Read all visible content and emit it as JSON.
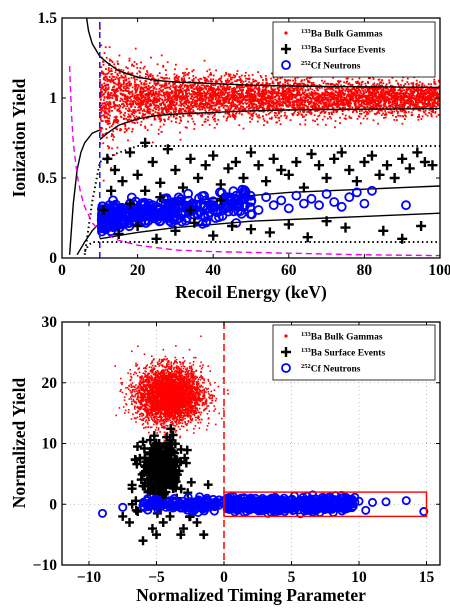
{
  "colors": {
    "gammas": "#ff0000",
    "surface": "#000000",
    "neutrons": "#0000ff",
    "magenta": "#ee00ee",
    "bands": "#000000",
    "cut": "#ff0000"
  },
  "legend_entries": [
    {
      "series": "gammas",
      "marker": "dot",
      "sup": "133",
      "text": "Ba Bulk Gammas"
    },
    {
      "series": "surface",
      "marker": "plus",
      "sup": "133",
      "text": "Ba Surface Events"
    },
    {
      "series": "neutrons",
      "marker": "circle",
      "sup": "252",
      "text": "Cf Neutrons"
    }
  ],
  "chart_data": [
    {
      "type": "scatter",
      "xlabel": "Recoil Energy (keV)",
      "ylabel": "Ionization Yield",
      "xlim": [
        0,
        100
      ],
      "ylim": [
        0,
        1.5
      ],
      "xticks": [
        0,
        20,
        40,
        60,
        80,
        100
      ],
      "xtick_labels": [
        "0",
        "20",
        "40",
        "60",
        "80",
        "100"
      ],
      "yticks": [
        0,
        0.5,
        1,
        1.5
      ],
      "ytick_labels": [
        "0",
        "0.5",
        "1",
        "1.5"
      ],
      "grid": false,
      "legend_position": "top-right",
      "series": [
        {
          "key": "gammas",
          "marker": "dot",
          "description_points": {
            "band_center": 1.0,
            "band_half_width_at_100keV": 0.07,
            "x_range": [
              10,
              100
            ],
            "density": "very high"
          }
        },
        {
          "key": "surface",
          "marker": "plus",
          "sample_points": [
            [
              12,
              0.62
            ],
            [
              14,
              0.55
            ],
            [
              16,
              0.48
            ],
            [
              18,
              0.66
            ],
            [
              20,
              0.52
            ],
            [
              22,
              0.42
            ],
            [
              24,
              0.6
            ],
            [
              26,
              0.47
            ],
            [
              28,
              0.68
            ],
            [
              30,
              0.55
            ],
            [
              32,
              0.44
            ],
            [
              34,
              0.62
            ],
            [
              36,
              0.5
            ],
            [
              38,
              0.58
            ],
            [
              40,
              0.64
            ],
            [
              42,
              0.46
            ],
            [
              44,
              0.56
            ],
            [
              46,
              0.6
            ],
            [
              48,
              0.5
            ],
            [
              50,
              0.66
            ],
            [
              52,
              0.58
            ],
            [
              54,
              0.48
            ],
            [
              56,
              0.62
            ],
            [
              58,
              0.55
            ],
            [
              60,
              0.52
            ],
            [
              62,
              0.6
            ],
            [
              64,
              0.44
            ],
            [
              66,
              0.65
            ],
            [
              68,
              0.58
            ],
            [
              70,
              0.5
            ],
            [
              72,
              0.62
            ],
            [
              74,
              0.66
            ],
            [
              76,
              0.55
            ],
            [
              78,
              0.48
            ],
            [
              80,
              0.6
            ],
            [
              82,
              0.64
            ],
            [
              84,
              0.52
            ],
            [
              86,
              0.58
            ],
            [
              88,
              0.5
            ],
            [
              90,
              0.62
            ],
            [
              92,
              0.56
            ],
            [
              94,
              0.66
            ],
            [
              96,
              0.6
            ],
            [
              98,
              0.58
            ],
            [
              15,
              0.15
            ],
            [
              20,
              0.2
            ],
            [
              25,
              0.12
            ],
            [
              30,
              0.17
            ],
            [
              35,
              0.22
            ],
            [
              40,
              0.14
            ],
            [
              45,
              0.2
            ],
            [
              50,
              0.18
            ],
            [
              55,
              0.16
            ],
            [
              60,
              0.21
            ],
            [
              65,
              0.13
            ],
            [
              70,
              0.23
            ],
            [
              75,
              0.19
            ],
            [
              85,
              0.17
            ],
            [
              90,
              0.12
            ],
            [
              95,
              0.2
            ],
            [
              18,
              0.34
            ],
            [
              26,
              0.38
            ],
            [
              34,
              0.3
            ],
            [
              42,
              0.36
            ],
            [
              22,
              0.72
            ],
            [
              11,
              0.3
            ],
            [
              13,
              0.42
            ]
          ]
        },
        {
          "key": "neutrons",
          "marker": "circle",
          "sample_points": [
            [
              10.5,
              0.24
            ],
            [
              11,
              0.3
            ],
            [
              11.5,
              0.2
            ],
            [
              12,
              0.27
            ],
            [
              12.5,
              0.33
            ],
            [
              13,
              0.22
            ],
            [
              14,
              0.29
            ],
            [
              15,
              0.25
            ],
            [
              16,
              0.31
            ],
            [
              17,
              0.27
            ],
            [
              18,
              0.34
            ],
            [
              19,
              0.23
            ],
            [
              20,
              0.3
            ],
            [
              22,
              0.28
            ],
            [
              24,
              0.33
            ],
            [
              26,
              0.26
            ],
            [
              28,
              0.31
            ],
            [
              30,
              0.35
            ],
            [
              32,
              0.29
            ],
            [
              34,
              0.32
            ],
            [
              36,
              0.27
            ],
            [
              38,
              0.36
            ],
            [
              40,
              0.3
            ],
            [
              42,
              0.34
            ],
            [
              44,
              0.29
            ],
            [
              46,
              0.37
            ],
            [
              48,
              0.32
            ],
            [
              50,
              0.35
            ],
            [
              52,
              0.3
            ],
            [
              54,
              0.38
            ],
            [
              56,
              0.33
            ],
            [
              58,
              0.36
            ],
            [
              60,
              0.31
            ],
            [
              62,
              0.39
            ],
            [
              64,
              0.34
            ],
            [
              66,
              0.37
            ],
            [
              68,
              0.33
            ],
            [
              70,
              0.4
            ],
            [
              72,
              0.35
            ],
            [
              74,
              0.32
            ],
            [
              76,
              0.38
            ],
            [
              80,
              0.34
            ],
            [
              82,
              0.42
            ],
            [
              78,
              0.41
            ],
            [
              91,
              0.33
            ],
            [
              13.5,
              0.36
            ],
            [
              21,
              0.23
            ],
            [
              27,
              0.37
            ],
            [
              33,
              0.25
            ]
          ]
        }
      ],
      "curves": [
        {
          "name": "gamma band upper",
          "style": "solid",
          "color_key": "bands",
          "x": [
            10,
            12,
            15,
            20,
            25,
            30,
            40,
            50,
            60,
            70,
            80,
            90,
            100
          ],
          "y": [
            1.26,
            1.22,
            1.17,
            1.13,
            1.11,
            1.1,
            1.09,
            1.08,
            1.075,
            1.072,
            1.07,
            1.068,
            1.066
          ]
        },
        {
          "name": "gamma band lower",
          "style": "solid",
          "color_key": "bands",
          "x": [
            10,
            12,
            15,
            20,
            25,
            30,
            40,
            50,
            60,
            70,
            80,
            90,
            100
          ],
          "y": [
            0.74,
            0.78,
            0.83,
            0.87,
            0.89,
            0.9,
            0.91,
            0.92,
            0.925,
            0.928,
            0.93,
            0.932,
            0.934
          ]
        },
        {
          "name": "nuclear band upper",
          "style": "solid",
          "color_key": "bands",
          "x": [
            4,
            6,
            8,
            10,
            15,
            20,
            30,
            40,
            50,
            60,
            70,
            80,
            90,
            100
          ],
          "y": [
            0.02,
            0.1,
            0.17,
            0.22,
            0.27,
            0.3,
            0.34,
            0.37,
            0.39,
            0.41,
            0.42,
            0.43,
            0.44,
            0.45
          ]
        },
        {
          "name": "nuclear band lower",
          "style": "solid",
          "color_key": "bands",
          "x": [
            10,
            15,
            20,
            30,
            40,
            50,
            60,
            70,
            80,
            90,
            100
          ],
          "y": [
            0.12,
            0.14,
            0.16,
            0.19,
            0.21,
            0.23,
            0.24,
            0.25,
            0.26,
            0.27,
            0.28
          ]
        },
        {
          "name": "gamma band outer",
          "style": "solid",
          "color_key": "bands",
          "x": [
            2,
            3,
            4,
            5,
            6,
            8,
            10
          ],
          "y": [
            0.02,
            0.34,
            0.55,
            0.66,
            0.72,
            0.78,
            0.8
          ]
        },
        {
          "name": "gamma band outer top",
          "style": "solid",
          "color_key": "bands",
          "x": [
            6.5,
            7,
            8,
            10
          ],
          "y": [
            1.5,
            1.42,
            1.34,
            1.26
          ]
        },
        {
          "name": "surface threshold",
          "style": "dotted",
          "color_key": "bands",
          "x": [
            6,
            8,
            10,
            14,
            20,
            100
          ],
          "y": [
            0.02,
            0.35,
            0.6,
            0.65,
            0.7,
            0.7
          ]
        },
        {
          "name": "ionization threshold",
          "style": "dotted",
          "color_key": "bands",
          "x": [
            6,
            7,
            8,
            10,
            20,
            100
          ],
          "y": [
            0.04,
            0.08,
            0.1,
            0.1,
            0.1,
            0.1
          ]
        },
        {
          "name": "charge threshold",
          "style": "dashed",
          "color_key": "magenta",
          "x": [
            2,
            2.5,
            3,
            4,
            5,
            6,
            8,
            10,
            15,
            20,
            30,
            40,
            60,
            80,
            100
          ],
          "y": [
            1.2,
            0.9,
            0.72,
            0.52,
            0.4,
            0.32,
            0.22,
            0.17,
            0.11,
            0.08,
            0.05,
            0.04,
            0.03,
            0.02,
            0.015
          ]
        },
        {
          "name": "recoil energy threshold",
          "style": "dashed",
          "color_key": "neutrons",
          "x": [
            10,
            10
          ],
          "y": [
            0,
            1.5
          ]
        }
      ]
    },
    {
      "type": "scatter",
      "xlabel": "Normalized Timing Parameter",
      "ylabel": "Normalized Yield",
      "xlim": [
        -12,
        16
      ],
      "ylim": [
        -10,
        30
      ],
      "xticks": [
        -10,
        -5,
        0,
        5,
        10,
        15
      ],
      "xtick_labels": [
        "−10",
        "−5",
        "0",
        "5",
        "10",
        "15"
      ],
      "yticks": [
        -10,
        0,
        10,
        20,
        30
      ],
      "ytick_labels": [
        "−10",
        "0",
        "10",
        "20",
        "30"
      ],
      "grid": true,
      "legend_position": "top-right",
      "series": [
        {
          "key": "gammas",
          "marker": "dot",
          "description_points": {
            "cluster_center": [
              -4,
              18
            ],
            "spread": [
              1.6,
              3.0
            ],
            "density": "very high"
          }
        },
        {
          "key": "surface",
          "marker": "plus",
          "sample_points": [
            [
              -4.5,
              8
            ],
            [
              -5,
              6
            ],
            [
              -4,
              9
            ],
            [
              -5.5,
              4
            ],
            [
              -4.2,
              5
            ],
            [
              -3.5,
              7
            ],
            [
              -6,
              3
            ],
            [
              -4.8,
              10
            ],
            [
              -3.8,
              3
            ],
            [
              -5.2,
              1
            ],
            [
              -6.5,
              -1
            ],
            [
              -4,
              -2
            ],
            [
              -7,
              -3
            ],
            [
              -3,
              -4
            ],
            [
              -5,
              -5
            ],
            [
              -2,
              -3
            ],
            [
              -6,
              -6
            ],
            [
              -4.5,
              -3
            ],
            [
              -3.5,
              1
            ],
            [
              -5.8,
              7
            ],
            [
              -4.3,
              2
            ],
            [
              -2.5,
              -2
            ],
            [
              -7.5,
              -2
            ],
            [
              -1.5,
              -5
            ],
            [
              -5.3,
              -4
            ],
            [
              -3.2,
              -5
            ],
            [
              -6.8,
              0
            ]
          ]
        },
        {
          "key": "neutrons",
          "marker": "circle",
          "sample_points": [
            [
              -9,
              -1.5
            ],
            [
              -7.5,
              -0.5
            ],
            [
              -6,
              -0.3
            ],
            [
              -5,
              0.3
            ],
            [
              -4,
              -0.5
            ],
            [
              -3,
              0.5
            ],
            [
              -2,
              -0.3
            ],
            [
              -1,
              0.2
            ],
            [
              0.5,
              0
            ],
            [
              1,
              -1
            ],
            [
              1.5,
              1
            ],
            [
              2,
              0
            ],
            [
              2.5,
              -0.5
            ],
            [
              3,
              0.6
            ],
            [
              3.5,
              -0.8
            ],
            [
              4,
              0.3
            ],
            [
              4.5,
              -1.2
            ],
            [
              5,
              0.8
            ],
            [
              5.5,
              -0.4
            ],
            [
              6,
              0.5
            ],
            [
              6.5,
              -1
            ],
            [
              7,
              0
            ],
            [
              7.5,
              0.7
            ],
            [
              8,
              -0.5
            ],
            [
              8.5,
              0.3
            ],
            [
              9,
              -0.8
            ],
            [
              10,
              0.5
            ],
            [
              10.5,
              -1
            ],
            [
              11,
              0.3
            ],
            [
              12,
              0.4
            ],
            [
              13.5,
              0.6
            ],
            [
              14.8,
              -1.2
            ]
          ]
        }
      ],
      "cut_line": {
        "x": 0,
        "style": "dashed",
        "color_key": "cut"
      },
      "selection_box": {
        "x": [
          0,
          15
        ],
        "y": [
          -2,
          2
        ],
        "color_key": "cut"
      }
    }
  ]
}
